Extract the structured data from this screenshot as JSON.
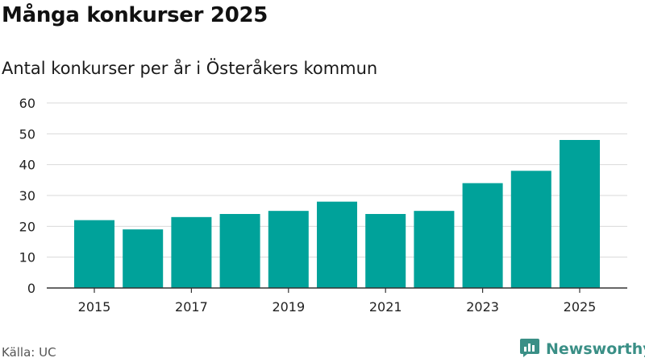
{
  "title": "Många konkurser 2025",
  "subtitle": "Antal konkurser per år i Österåkers kommun",
  "source": "Källa: UC",
  "brand": {
    "name": "Newsworthy",
    "icon": "newsworthy-logo-icon",
    "color": "#3a8f86"
  },
  "colors": {
    "bar": "#00a29a",
    "grid": "#d9d9d9",
    "axis": "#333333",
    "text": "#222222"
  },
  "chart_data": {
    "type": "bar",
    "title": "Många konkurser 2025",
    "subtitle": "Antal konkurser per år i Österåkers kommun",
    "categories": [
      "2015",
      "2016",
      "2017",
      "2018",
      "2019",
      "2020",
      "2021",
      "2022",
      "2023",
      "2024",
      "2025"
    ],
    "values": [
      22,
      19,
      23,
      24,
      25,
      28,
      24,
      25,
      34,
      38,
      48
    ],
    "xtick_labels": [
      "2015",
      "2017",
      "2019",
      "2021",
      "2023",
      "2025"
    ],
    "ytick_labels": [
      "0",
      "10",
      "20",
      "30",
      "40",
      "50",
      "60"
    ],
    "xlabel": "",
    "ylabel": "",
    "ylim": [
      0,
      60
    ],
    "grid": true,
    "legend": "none"
  }
}
